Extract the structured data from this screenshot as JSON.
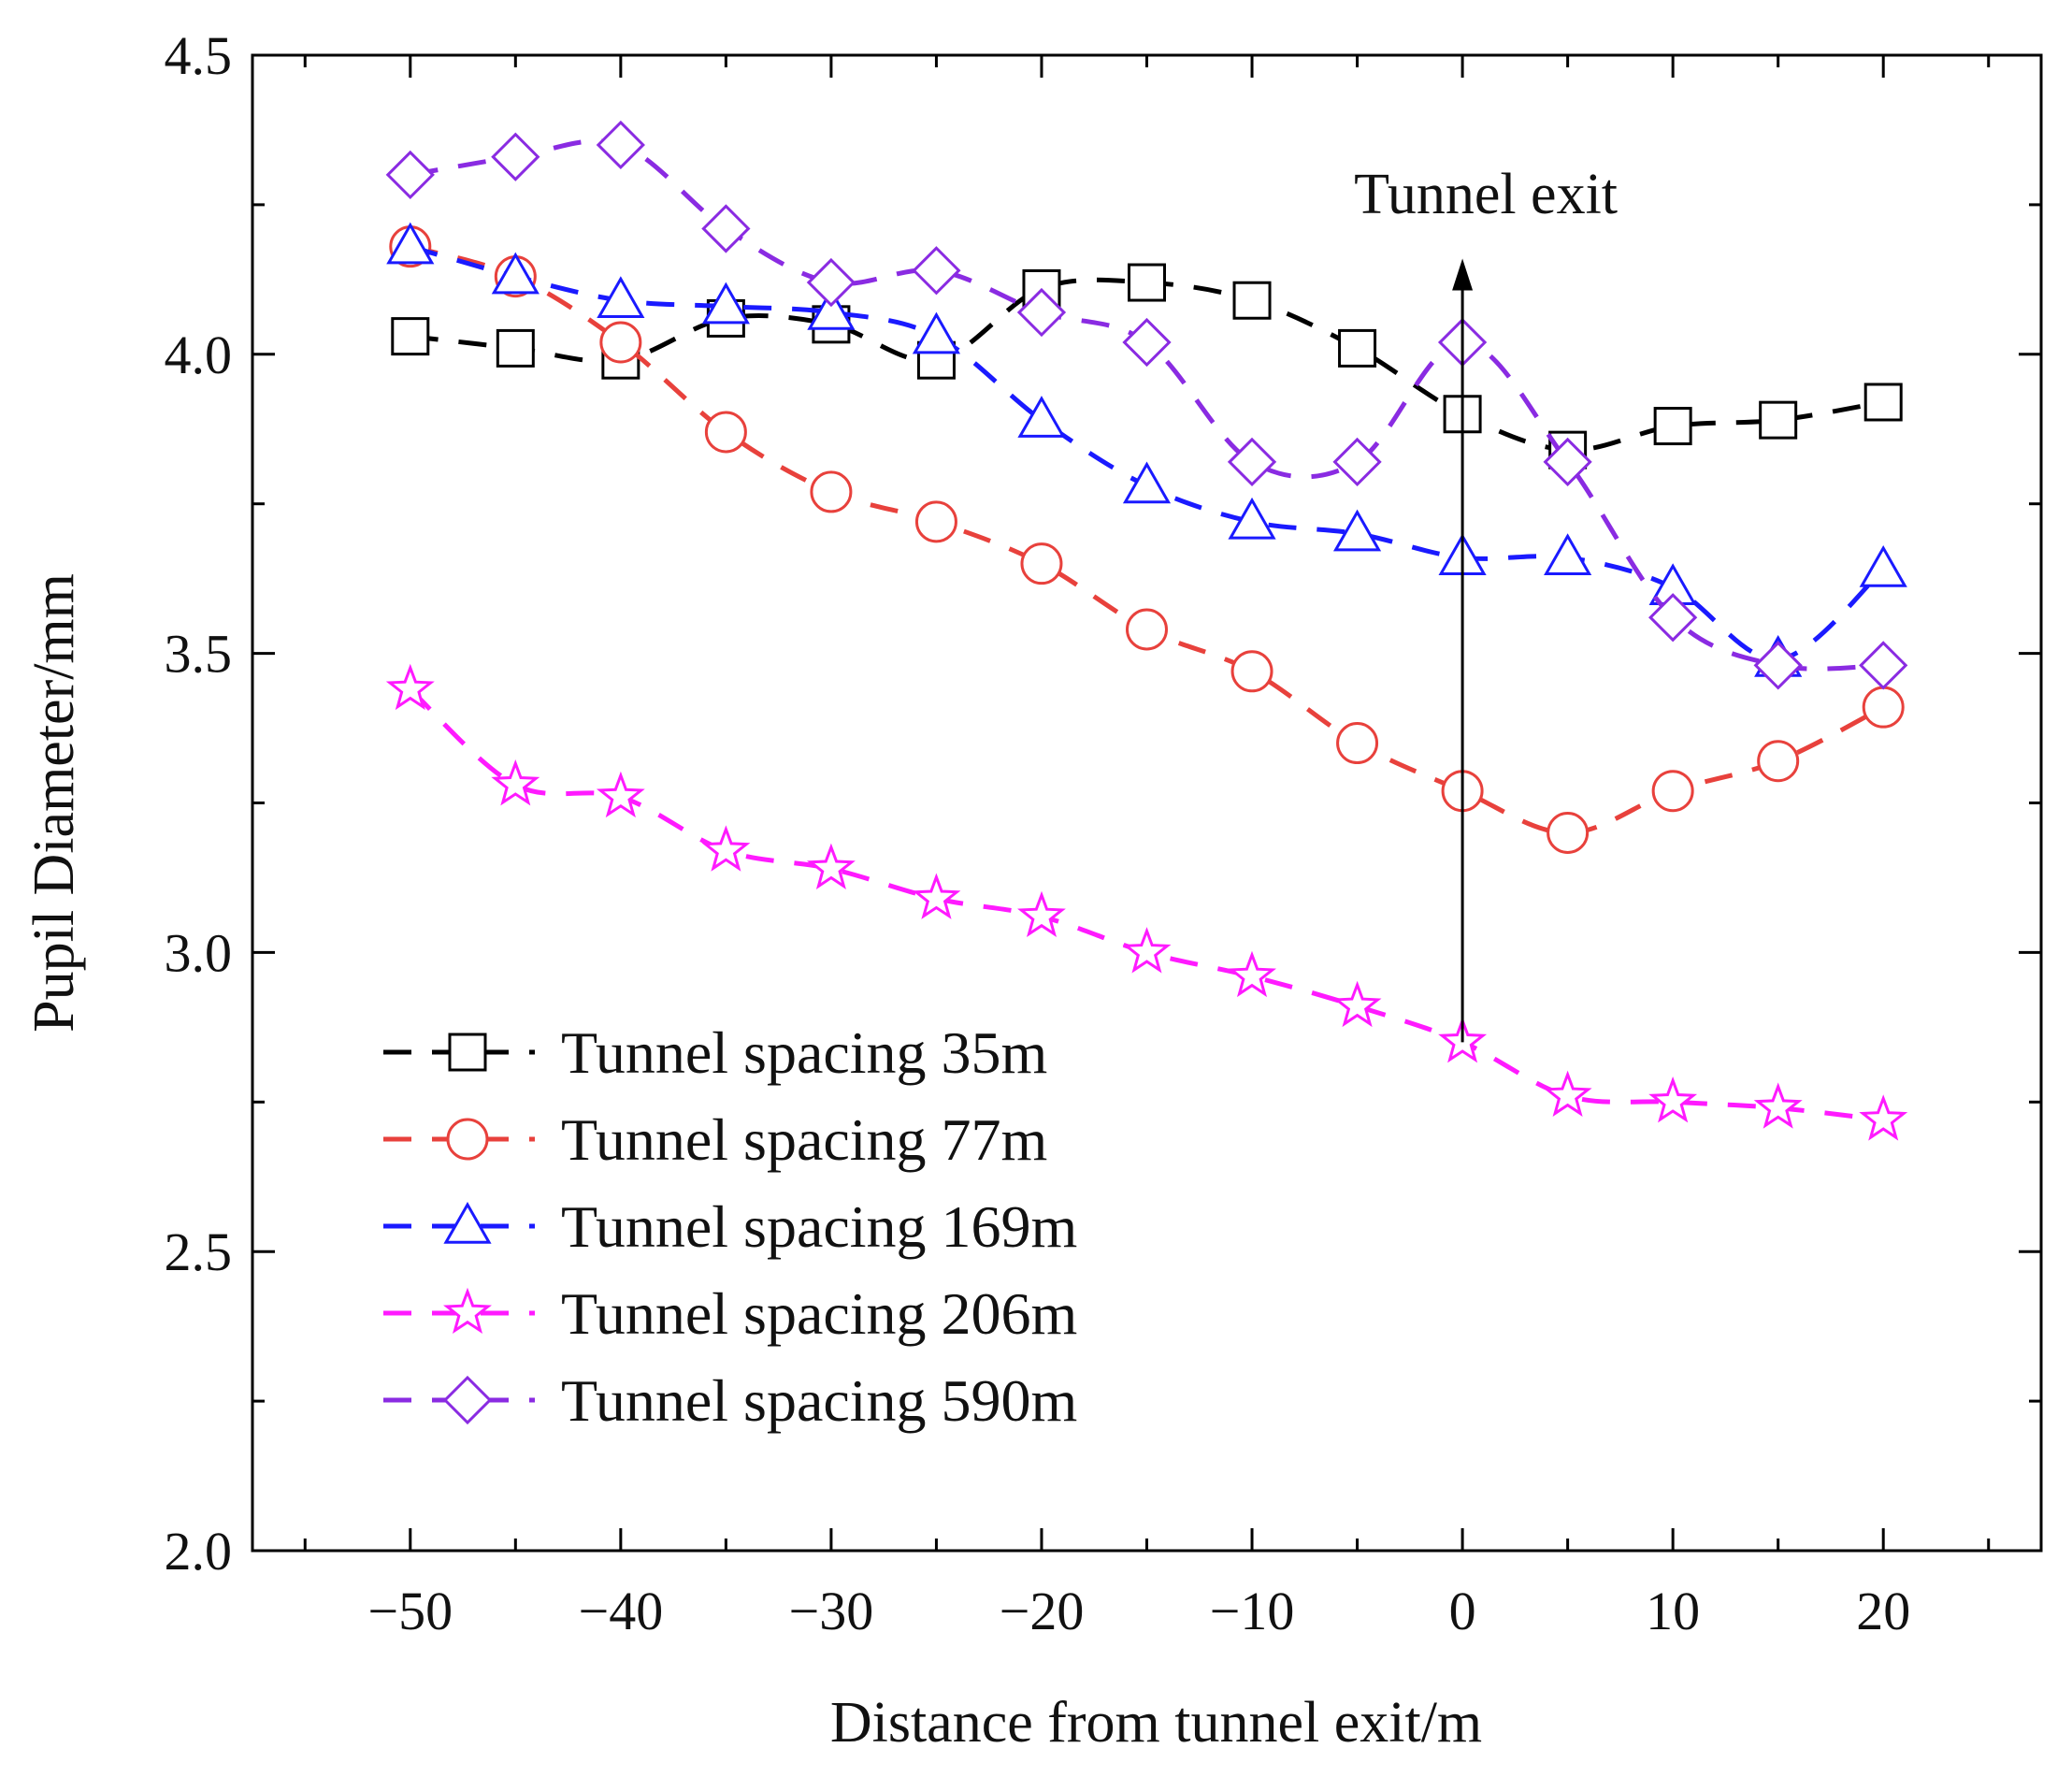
{
  "chart_data": {
    "type": "line",
    "title": "",
    "xlabel": "Distance from tunnel exit/m",
    "ylabel": "Pupil Diameter/mm",
    "xlim": [
      -57.5,
      27.5
    ],
    "ylim": [
      2.0,
      4.5
    ],
    "x_ticks": [
      -50,
      -40,
      -30,
      -20,
      -10,
      0,
      10,
      20
    ],
    "x_tick_labels": [
      "−50",
      "−40",
      "−30",
      "−20",
      "−10",
      "0",
      "10",
      "20"
    ],
    "y_ticks": [
      2.0,
      2.5,
      3.0,
      3.5,
      4.0,
      4.5
    ],
    "y_tick_labels": [
      "2.0",
      "2.5",
      "3.0",
      "3.5",
      "4.0",
      "4.5"
    ],
    "grid": false,
    "legend_position": "bottom-left",
    "x": [
      -50,
      -45,
      -40,
      -35,
      -30,
      -25,
      -20,
      -15,
      -10,
      -5,
      0,
      5,
      10,
      15,
      20
    ],
    "series": [
      {
        "name": "Tunnel spacing 35m",
        "color": "#000000",
        "marker": "square",
        "values": [
          4.03,
          4.01,
          3.99,
          4.06,
          4.05,
          3.99,
          4.11,
          4.12,
          4.09,
          4.01,
          3.9,
          3.84,
          3.88,
          3.89,
          3.92
        ]
      },
      {
        "name": "Tunnel spacing 77m",
        "color": "#e8413c",
        "marker": "circle",
        "values": [
          4.18,
          4.13,
          4.02,
          3.87,
          3.77,
          3.72,
          3.65,
          3.54,
          3.47,
          3.35,
          3.27,
          3.2,
          3.27,
          3.32,
          3.41
        ]
      },
      {
        "name": "Tunnel spacing 169m",
        "color": "#1a1aff",
        "marker": "triangle",
        "values": [
          4.18,
          4.13,
          4.09,
          4.08,
          4.07,
          4.03,
          3.89,
          3.78,
          3.72,
          3.7,
          3.66,
          3.66,
          3.61,
          3.49,
          3.64
        ]
      },
      {
        "name": "Tunnel spacing 206m",
        "color": "#ff1aff",
        "marker": "star",
        "values": [
          3.44,
          3.28,
          3.26,
          3.17,
          3.14,
          3.09,
          3.06,
          3.0,
          2.96,
          2.91,
          2.85,
          2.76,
          2.75,
          2.74,
          2.72
        ]
      },
      {
        "name": "Tunnel spacing 590m",
        "color": "#8a2be2",
        "marker": "diamond",
        "values": [
          4.3,
          4.33,
          4.35,
          4.21,
          4.12,
          4.14,
          4.07,
          4.02,
          3.82,
          3.82,
          4.02,
          3.82,
          3.56,
          3.48,
          3.48
        ]
      }
    ],
    "annotations": [
      {
        "text": "Tunnel exit",
        "x": 0,
        "arrow_from_y": 2.85,
        "arrow_to_y": 4.16
      }
    ]
  }
}
